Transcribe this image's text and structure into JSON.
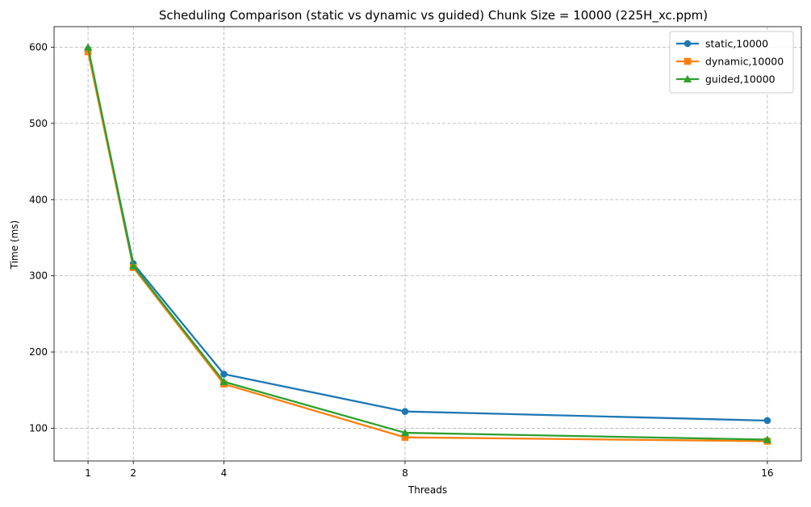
{
  "chart_data": {
    "type": "line",
    "title": "Scheduling Comparison (static vs dynamic vs guided) Chunk Size = 10000 (225H_xc.ppm)",
    "xlabel": "Threads",
    "ylabel": "Time (ms)",
    "x": [
      1,
      2,
      4,
      8,
      16
    ],
    "x_ticks": [
      "1",
      "2",
      "4",
      "8",
      "16"
    ],
    "y_ticks": [
      "100",
      "200",
      "300",
      "400",
      "500",
      "600"
    ],
    "xlim": [
      0.25,
      16.75
    ],
    "ylim": [
      57,
      627
    ],
    "grid": true,
    "legend_position": "top-right",
    "series": [
      {
        "name": "static,10000",
        "color": "#1f77b4",
        "marker": "circle",
        "values": [
          597,
          316,
          171,
          122,
          110
        ]
      },
      {
        "name": "dynamic,10000",
        "color": "#ff7f0e",
        "marker": "square",
        "values": [
          594,
          311,
          158,
          88,
          83
        ]
      },
      {
        "name": "guided,10000",
        "color": "#2ca02c",
        "marker": "triangle",
        "values": [
          600,
          313,
          161,
          94,
          85
        ]
      }
    ]
  }
}
